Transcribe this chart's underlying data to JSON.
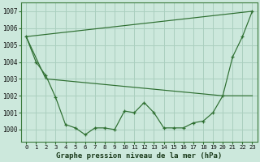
{
  "xlabel": "Graphe pression niveau de la mer (hPa)",
  "bg_color": "#cce8dc",
  "grid_color": "#aacfbf",
  "line_color": "#2d6e30",
  "marker": "+",
  "ylim": [
    999.3,
    1007.5
  ],
  "xlim": [
    -0.5,
    23.5
  ],
  "yticks": [
    1000,
    1001,
    1002,
    1003,
    1004,
    1005,
    1006,
    1007
  ],
  "xticks": [
    0,
    1,
    2,
    3,
    4,
    5,
    6,
    7,
    8,
    9,
    10,
    11,
    12,
    13,
    14,
    15,
    16,
    17,
    18,
    19,
    20,
    21,
    22,
    23
  ],
  "series": [
    {
      "x": [
        0,
        1,
        2,
        3,
        4,
        5,
        6,
        7,
        8,
        9,
        10,
        11,
        12,
        13,
        14,
        15,
        16,
        17,
        18,
        19,
        20,
        21,
        22,
        23
      ],
      "y": [
        1005.5,
        1004.0,
        1003.2,
        1001.9,
        1000.3,
        1000.1,
        999.7,
        1000.1,
        1000.1,
        1000.0,
        1001.1,
        1001.0,
        1001.6,
        1001.0,
        1000.1,
        1000.1,
        1000.1,
        1000.4,
        1000.5,
        1001.0,
        1002.0,
        1004.3,
        1005.5,
        1007.0
      ],
      "has_markers": true
    },
    {
      "x": [
        0,
        23
      ],
      "y": [
        1005.5,
        1007.0
      ],
      "has_markers": false
    },
    {
      "x": [
        0,
        2,
        20,
        23
      ],
      "y": [
        1005.5,
        1003.0,
        1002.0,
        1002.0
      ],
      "has_markers": false
    }
  ]
}
